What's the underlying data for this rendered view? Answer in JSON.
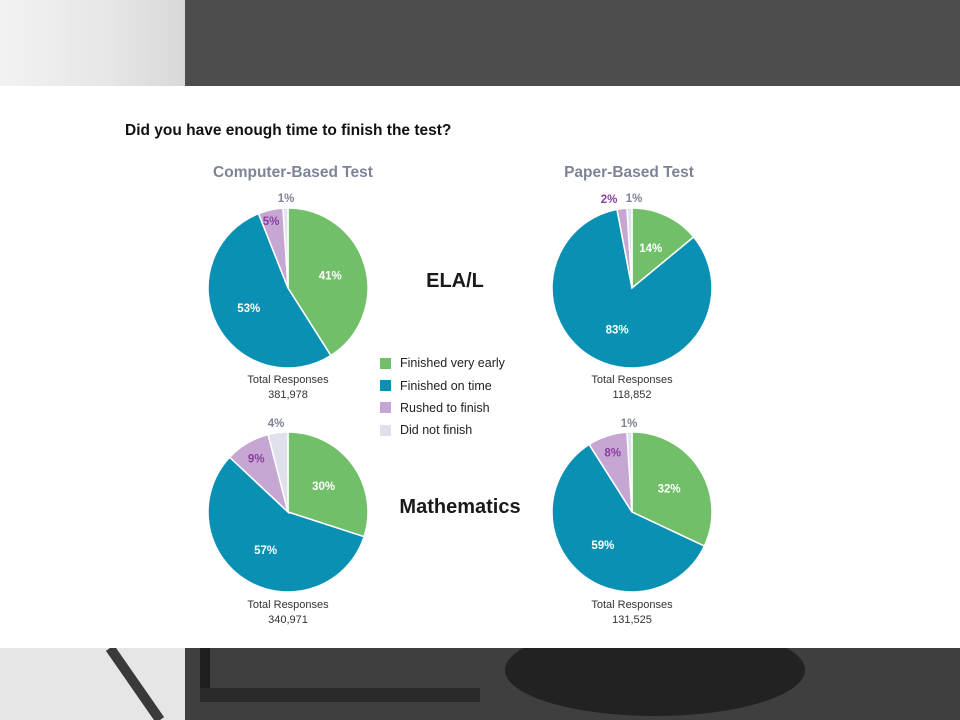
{
  "question": "Did you have enough time to finish the test?",
  "columns": [
    "Computer-Based Test",
    "Paper-Based Test"
  ],
  "rows": [
    "ELA/L",
    "Mathematics"
  ],
  "legend": [
    {
      "label": "Finished very early",
      "color": "#72bf6a"
    },
    {
      "label": "Finished on time",
      "color": "#0a90b3"
    },
    {
      "label": "Rushed to finish",
      "color": "#c6a6d3"
    },
    {
      "label": "Did not finish",
      "color": "#dfe0eb"
    }
  ],
  "total_label": "Total Responses",
  "totals": {
    "ela_cbt": "381,978",
    "ela_pbt": "118,852",
    "math_cbt": "340,971",
    "math_pbt": "131,525"
  },
  "chart_data": [
    {
      "type": "pie",
      "title": "Computer-Based Test",
      "group": "ELA/L",
      "categories": [
        "Finished very early",
        "Finished on time",
        "Rushed to finish",
        "Did not finish"
      ],
      "values": [
        41,
        53,
        5,
        1
      ],
      "labels": [
        "41%",
        "53%",
        "5%",
        "1%"
      ],
      "total_responses": "381,978"
    },
    {
      "type": "pie",
      "title": "Paper-Based Test",
      "group": "ELA/L",
      "categories": [
        "Finished very early",
        "Finished on time",
        "Rushed to finish",
        "Did not finish"
      ],
      "values": [
        14,
        83,
        2,
        1
      ],
      "labels": [
        "14%",
        "83%",
        "2%",
        "1%"
      ],
      "total_responses": "118,852"
    },
    {
      "type": "pie",
      "title": "Computer-Based Test",
      "group": "Mathematics",
      "categories": [
        "Finished very early",
        "Finished on time",
        "Rushed to finish",
        "Did not finish"
      ],
      "values": [
        30,
        57,
        9,
        4
      ],
      "labels": [
        "30%",
        "57%",
        "9%",
        "4%"
      ],
      "total_responses": "340,971"
    },
    {
      "type": "pie",
      "title": "Paper-Based Test",
      "group": "Mathematics",
      "categories": [
        "Finished very early",
        "Finished on time",
        "Rushed to finish",
        "Did not finish"
      ],
      "values": [
        32,
        59,
        8,
        1
      ],
      "labels": [
        "32%",
        "59%",
        "8%",
        "1%"
      ],
      "total_responses": "131,525"
    }
  ]
}
